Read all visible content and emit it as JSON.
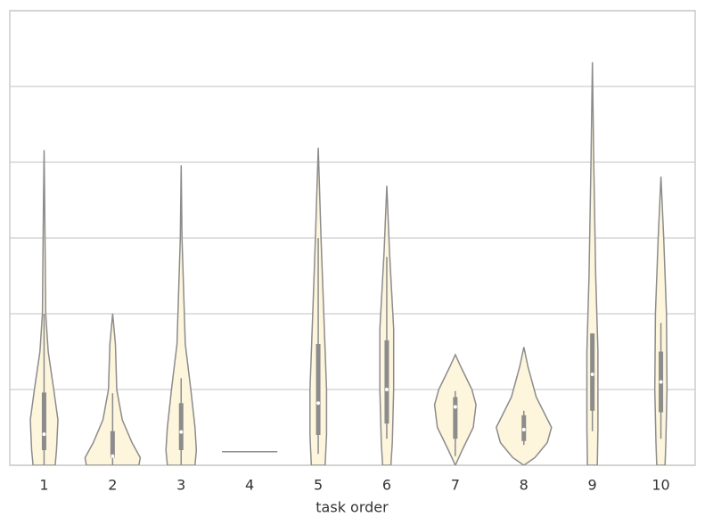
{
  "chart_data": {
    "type": "violin",
    "xlabel": "task order",
    "categories": [
      "1",
      "2",
      "3",
      "4",
      "5",
      "6",
      "7",
      "8",
      "9",
      "10"
    ],
    "ylim": [
      0,
      6
    ],
    "yticks": [
      0,
      1,
      2,
      3,
      4,
      5,
      6
    ],
    "ytick_labels": false,
    "grid": true,
    "fill": "#fdf5dc",
    "edge_color": "#8c8c8c",
    "violins": [
      {
        "levels": [
          0,
          0.2,
          0.6,
          1.0,
          1.5,
          2.0,
          3.5,
          4.16
        ],
        "density": [
          0.4,
          0.45,
          0.5,
          0.35,
          0.15,
          0.06,
          0.02,
          0
        ],
        "q1": 0.2,
        "median": 0.41,
        "q3": 0.96,
        "whisker_low": 0,
        "whisker_high": 2.0
      },
      {
        "levels": [
          0,
          0.1,
          0.3,
          0.6,
          1.0,
          1.6,
          2.0
        ],
        "density": [
          0.95,
          1.0,
          0.7,
          0.35,
          0.15,
          0.1,
          0
        ],
        "q1": 0.1,
        "median": 0.12,
        "q3": 0.45,
        "whisker_low": 0,
        "whisker_high": 0.95
      },
      {
        "levels": [
          0,
          0.2,
          0.5,
          1.0,
          1.6,
          3.0,
          3.96
        ],
        "density": [
          0.5,
          0.55,
          0.5,
          0.35,
          0.15,
          0.03,
          0
        ],
        "q1": 0.2,
        "median": 0.44,
        "q3": 0.82,
        "whisker_low": 0,
        "whisker_high": 1.15
      },
      {
        "levels": [
          0.18
        ],
        "density": [
          1
        ]
      },
      {
        "levels": [
          0,
          0.4,
          1.0,
          2.0,
          3.0,
          4.19
        ],
        "density": [
          0.25,
          0.3,
          0.3,
          0.2,
          0.1,
          0
        ],
        "q1": 0.4,
        "median": 0.82,
        "q3": 1.6,
        "whisker_low": 0.15,
        "whisker_high": 3.0
      },
      {
        "levels": [
          0,
          0.3,
          1.0,
          1.8,
          2.8,
          3.69
        ],
        "density": [
          0.15,
          0.2,
          0.25,
          0.25,
          0.1,
          0
        ],
        "q1": 0.55,
        "median": 1.0,
        "q3": 1.65,
        "whisker_low": 0.35,
        "whisker_high": 2.75
      },
      {
        "levels": [
          0,
          0.2,
          0.5,
          0.8,
          1.0,
          1.3,
          1.46
        ],
        "density": [
          0,
          0.25,
          0.65,
          0.75,
          0.6,
          0.2,
          0
        ],
        "q1": 0.35,
        "median": 0.77,
        "q3": 0.9,
        "whisker_low": 0.12,
        "whisker_high": 0.98
      },
      {
        "levels": [
          0,
          0.1,
          0.3,
          0.5,
          0.9,
          1.3,
          1.56
        ],
        "density": [
          0,
          0.4,
          0.85,
          1.0,
          0.45,
          0.15,
          0
        ],
        "q1": 0.32,
        "median": 0.47,
        "q3": 0.66,
        "whisker_low": 0.27,
        "whisker_high": 0.72
      },
      {
        "levels": [
          0,
          0.5,
          1.5,
          2.5,
          4.0,
          5.32
        ],
        "density": [
          0.18,
          0.2,
          0.2,
          0.12,
          0.05,
          0
        ],
        "q1": 0.72,
        "median": 1.2,
        "q3": 1.74,
        "whisker_low": 0.45,
        "whisker_high": 1.74
      },
      {
        "levels": [
          0,
          0.3,
          1.0,
          2.0,
          3.0,
          3.81
        ],
        "density": [
          0.15,
          0.18,
          0.22,
          0.2,
          0.1,
          0
        ],
        "q1": 0.7,
        "median": 1.1,
        "q3": 1.5,
        "whisker_low": 0.35,
        "whisker_high": 1.88
      }
    ]
  }
}
